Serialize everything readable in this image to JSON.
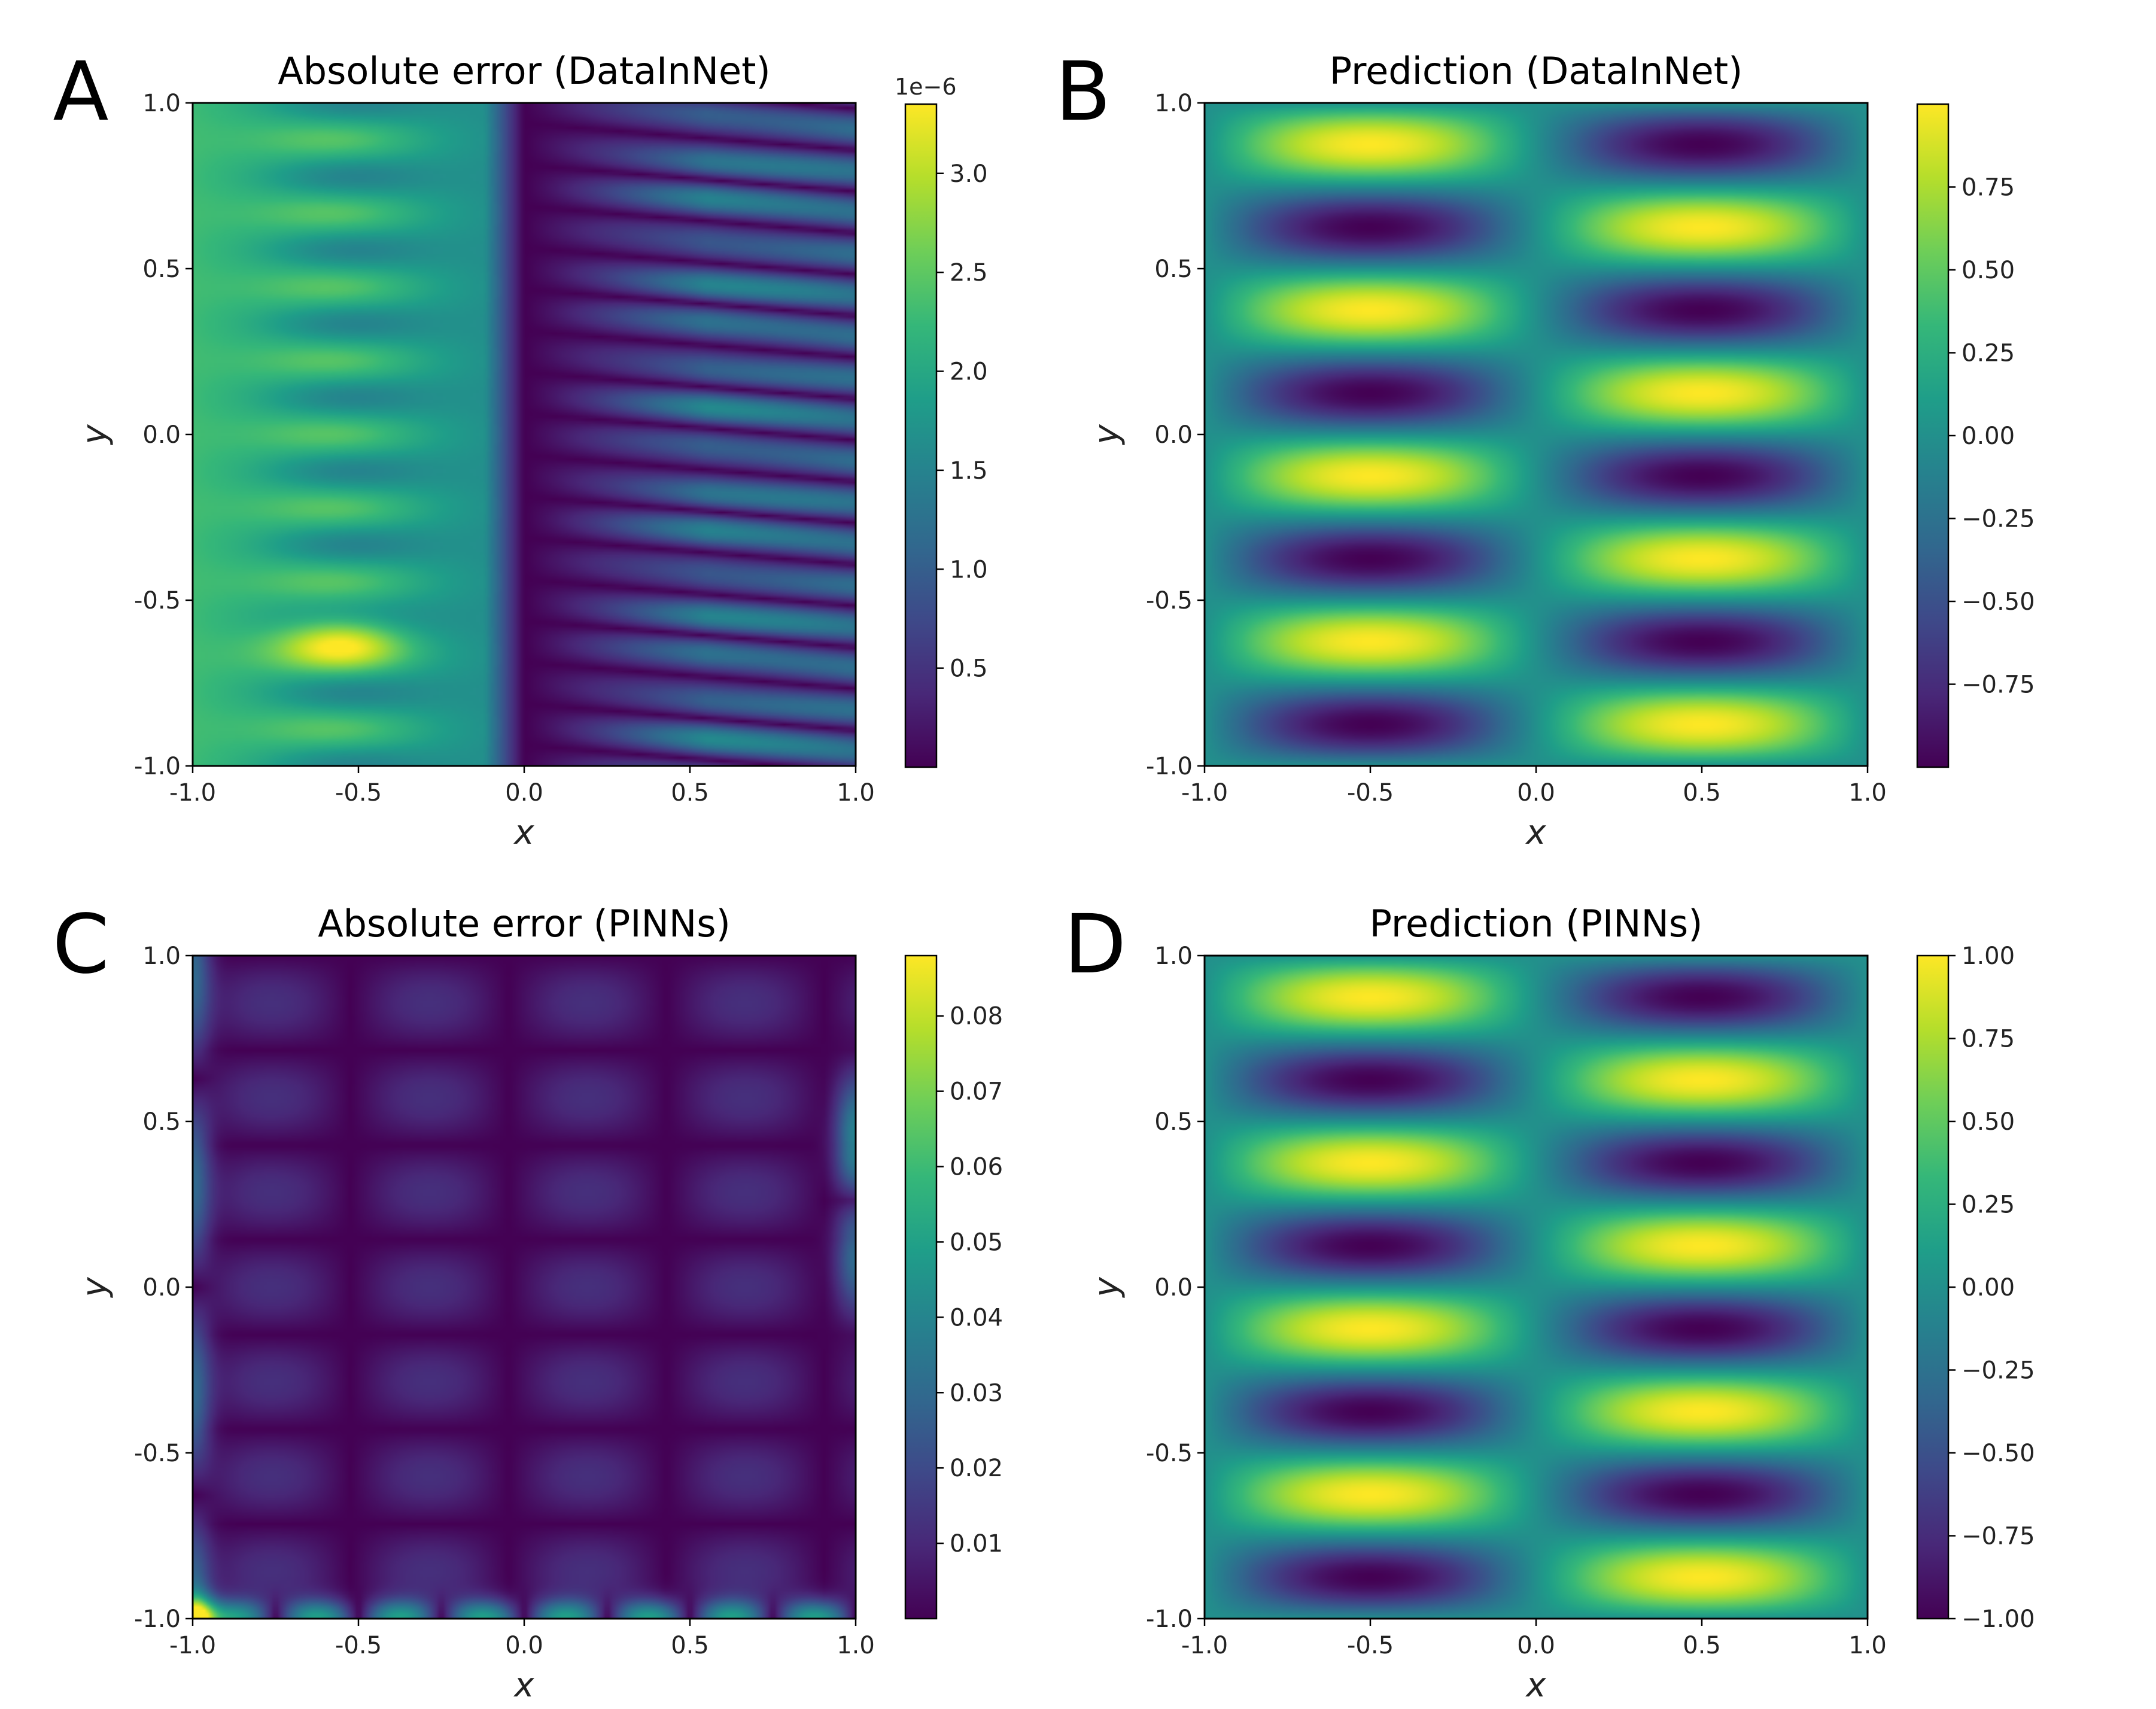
{
  "chart_data": [
    {
      "panel": "A",
      "type": "heatmap",
      "title": "Absolute error (DataInNet)",
      "xlabel": "x",
      "ylabel": "y",
      "xlim": [
        -1.0,
        1.0
      ],
      "ylim": [
        -1.0,
        1.0
      ],
      "x_ticks": [
        "-1.0",
        "-0.5",
        "0.0",
        "0.5",
        "1.0"
      ],
      "y_ticks": [
        "-1.0",
        "-0.5",
        "0.0",
        "0.5",
        "1.0"
      ],
      "colormap": "viridis",
      "field": "dataInNetError",
      "colorbar": {
        "min": 0.0,
        "max": 3.35,
        "offset_text": "1e−6",
        "ticks": [
          0.5,
          1.0,
          1.5,
          2.0,
          2.5,
          3.0
        ],
        "tick_labels": [
          "0.5",
          "1.0",
          "1.5",
          "2.0",
          "2.5",
          "3.0"
        ]
      }
    },
    {
      "panel": "B",
      "type": "heatmap",
      "title": "Prediction (DataInNet)",
      "xlabel": "x",
      "ylabel": "y",
      "xlim": [
        -1.0,
        1.0
      ],
      "ylim": [
        -1.0,
        1.0
      ],
      "x_ticks": [
        "-1.0",
        "-0.5",
        "0.0",
        "0.5",
        "1.0"
      ],
      "y_ticks": [
        "-1.0",
        "-0.5",
        "0.0",
        "0.5",
        "1.0"
      ],
      "colormap": "viridis",
      "field": "prediction",
      "colorbar": {
        "min": -1.0,
        "max": 1.0,
        "offset_text": "",
        "ticks": [
          -0.75,
          -0.5,
          -0.25,
          0.0,
          0.25,
          0.5,
          0.75
        ],
        "tick_labels": [
          "−0.75",
          "−0.50",
          "−0.25",
          "0.00",
          "0.25",
          "0.50",
          "0.75"
        ]
      }
    },
    {
      "panel": "C",
      "type": "heatmap",
      "title": "Absolute error (PINNs)",
      "xlabel": "x",
      "ylabel": "y",
      "xlim": [
        -1.0,
        1.0
      ],
      "ylim": [
        -1.0,
        1.0
      ],
      "x_ticks": [
        "-1.0",
        "-0.5",
        "0.0",
        "0.5",
        "1.0"
      ],
      "y_ticks": [
        "-1.0",
        "-0.5",
        "0.0",
        "0.5",
        "1.0"
      ],
      "colormap": "viridis",
      "field": "pinnsError",
      "colorbar": {
        "min": 0.0,
        "max": 0.088,
        "offset_text": "",
        "ticks": [
          0.01,
          0.02,
          0.03,
          0.04,
          0.05,
          0.06,
          0.07,
          0.08
        ],
        "tick_labels": [
          "0.01",
          "0.02",
          "0.03",
          "0.04",
          "0.05",
          "0.06",
          "0.07",
          "0.08"
        ]
      }
    },
    {
      "panel": "D",
      "type": "heatmap",
      "title": "Prediction (PINNs)",
      "xlabel": "x",
      "ylabel": "y",
      "xlim": [
        -1.0,
        1.0
      ],
      "ylim": [
        -1.0,
        1.0
      ],
      "x_ticks": [
        "-1.0",
        "-0.5",
        "0.0",
        "0.5",
        "1.0"
      ],
      "y_ticks": [
        "-1.0",
        "-0.5",
        "0.0",
        "0.5",
        "1.0"
      ],
      "colormap": "viridis",
      "field": "prediction",
      "colorbar": {
        "min": -1.0,
        "max": 1.0,
        "offset_text": "",
        "ticks": [
          -1.0,
          -0.75,
          -0.5,
          -0.25,
          0.0,
          0.25,
          0.5,
          0.75,
          1.0
        ],
        "tick_labels": [
          "−1.00",
          "−0.75",
          "−0.50",
          "−0.25",
          "0.00",
          "0.25",
          "0.50",
          "0.75",
          "1.00"
        ]
      }
    }
  ],
  "colors": {
    "viridis_stops": [
      "#440154",
      "#482878",
      "#3e4989",
      "#31688e",
      "#26828e",
      "#1f9e89",
      "#35b779",
      "#6ece58",
      "#b5de2b",
      "#fde725"
    ]
  }
}
